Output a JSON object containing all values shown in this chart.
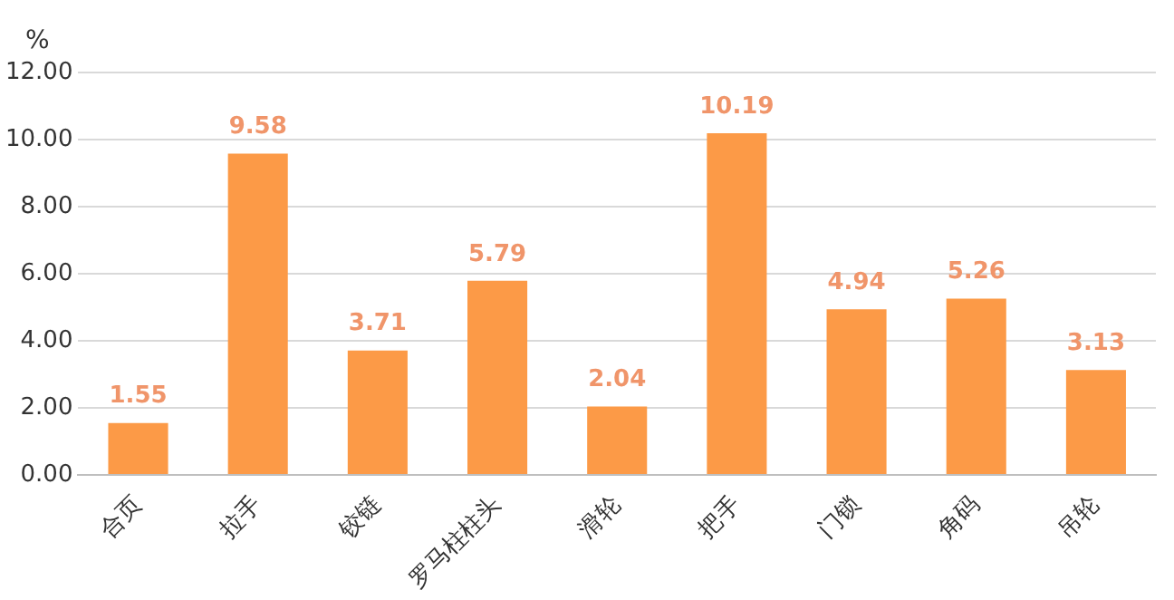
{
  "chart_data": {
    "type": "bar",
    "ylabel": "%",
    "categories": [
      "合页",
      "拉手",
      "铰链",
      "罗马柱柱头",
      "滑轮",
      "把手",
      "门锁",
      "角码",
      "吊轮"
    ],
    "values": [
      1.55,
      9.58,
      3.71,
      5.79,
      2.04,
      10.19,
      4.94,
      5.26,
      3.13
    ],
    "color": "#fc9a47",
    "ylim": [
      0,
      12
    ],
    "yticks": [
      {
        "value": 0,
        "label": "0.00"
      },
      {
        "value": 2,
        "label": "2.00"
      },
      {
        "value": 4,
        "label": "4.00"
      },
      {
        "value": 6,
        "label": "6.00"
      },
      {
        "value": 8,
        "label": "8.00"
      },
      {
        "value": 10,
        "label": "10.00"
      },
      {
        "value": 12,
        "label": "12.00"
      }
    ],
    "grid": "y",
    "data_labels": true
  }
}
